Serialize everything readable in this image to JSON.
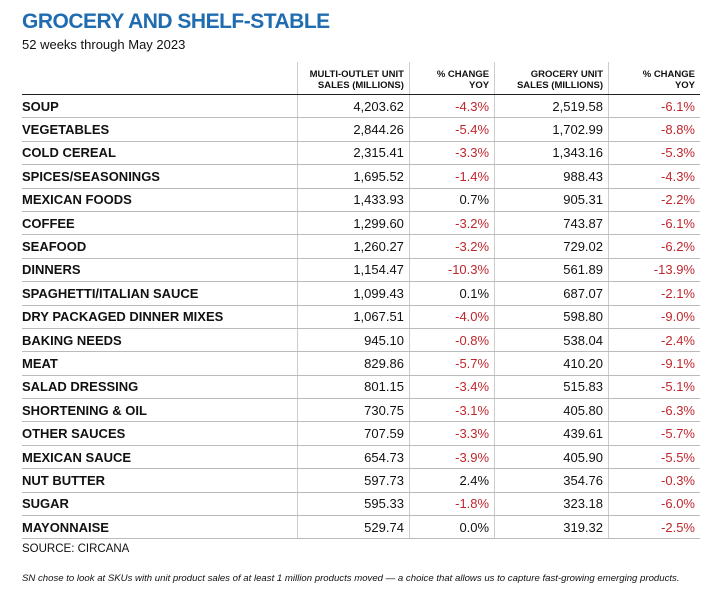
{
  "header": {
    "title": "GROCERY AND SHELF-STABLE",
    "subtitle": "52 weeks through May 2023"
  },
  "table": {
    "headers": [
      "MULTI-OUTLET UNIT\nSALES (MILLIONS)",
      "% CHANGE\nYOY",
      "GROCERY UNIT\nSALES (MILLIONS)",
      "% CHANGE\nYOY"
    ],
    "rows": [
      [
        "SOUP",
        "4,203.62",
        "-4.3%",
        "2,519.58",
        "-6.1%"
      ],
      [
        "VEGETABLES",
        "2,844.26",
        "-5.4%",
        "1,702.99",
        "-8.8%"
      ],
      [
        "COLD CEREAL",
        "2,315.41",
        "-3.3%",
        "1,343.16",
        "-5.3%"
      ],
      [
        "SPICES/SEASONINGS",
        "1,695.52",
        "-1.4%",
        "988.43",
        "-4.3%"
      ],
      [
        "MEXICAN FOODS",
        "1,433.93",
        "0.7%",
        "905.31",
        "-2.2%"
      ],
      [
        "COFFEE",
        "1,299.60",
        "-3.2%",
        "743.87",
        "-6.1%"
      ],
      [
        "SEAFOOD",
        "1,260.27",
        "-3.2%",
        "729.02",
        "-6.2%"
      ],
      [
        "DINNERS",
        "1,154.47",
        "-10.3%",
        "561.89",
        "-13.9%"
      ],
      [
        "SPAGHETTI/ITALIAN SAUCE",
        "1,099.43",
        "0.1%",
        "687.07",
        "-2.1%"
      ],
      [
        "DRY PACKAGED DINNER MIXES",
        "1,067.51",
        "-4.0%",
        "598.80",
        "-9.0%"
      ],
      [
        "BAKING NEEDS",
        "945.10",
        "-0.8%",
        "538.04",
        "-2.4%"
      ],
      [
        "MEAT",
        "829.86",
        "-5.7%",
        "410.20",
        "-9.1%"
      ],
      [
        "SALAD DRESSING",
        "801.15",
        "-3.4%",
        "515.83",
        "-5.1%"
      ],
      [
        "SHORTENING & OIL",
        "730.75",
        "-3.1%",
        "405.80",
        "-6.3%"
      ],
      [
        "OTHER SAUCES",
        "707.59",
        "-3.3%",
        "439.61",
        "-5.7%"
      ],
      [
        "MEXICAN SAUCE",
        "654.73",
        "-3.9%",
        "405.90",
        "-5.5%"
      ],
      [
        "NUT BUTTER",
        "597.73",
        "2.4%",
        "354.76",
        "-0.3%"
      ],
      [
        "SUGAR",
        "595.33",
        "-1.8%",
        "323.18",
        "-6.0%"
      ],
      [
        "MAYONNAISE",
        "529.74",
        "0.0%",
        "319.32",
        "-2.5%"
      ]
    ]
  },
  "source": "SOURCE: CIRCANA",
  "footnote": "SN chose to look at SKUs with unit product sales of at least 1 million products moved — a choice that allows us to capture fast-growing emerging products."
}
